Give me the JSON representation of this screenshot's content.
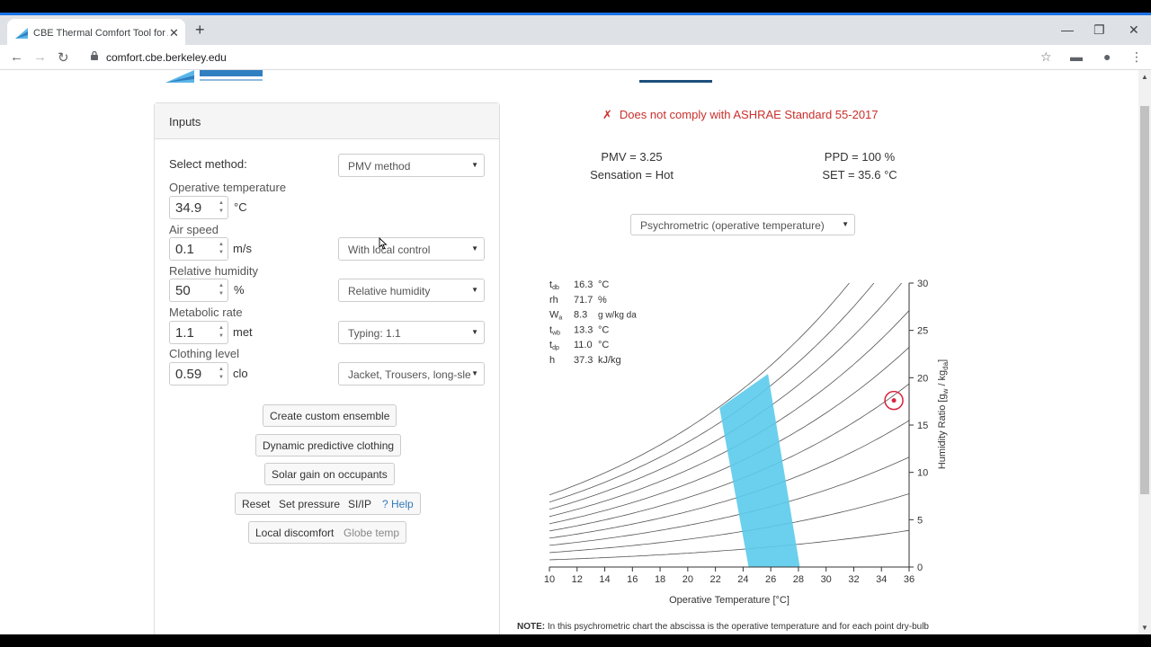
{
  "browser": {
    "tab_title": "CBE Thermal Comfort Tool for AS",
    "url": "comfort.cbe.berkeley.edu"
  },
  "inputs": {
    "header": "Inputs",
    "select_method_label": "Select method:",
    "method_value": "PMV method",
    "operative_temperature": {
      "label": "Operative temperature",
      "value": "34.9",
      "unit": "°C"
    },
    "air_speed": {
      "label": "Air speed",
      "value": "0.1",
      "unit": "m/s",
      "option": "With local control"
    },
    "relative_humidity": {
      "label": "Relative humidity",
      "value": "50",
      "unit": "%",
      "option": "Relative humidity"
    },
    "metabolic_rate": {
      "label": "Metabolic rate",
      "value": "1.1",
      "unit": "met",
      "option": "Typing: 1.1"
    },
    "clothing_level": {
      "label": "Clothing level",
      "value": "0.59",
      "unit": "clo",
      "option": "Jacket, Trousers, long-sle"
    },
    "buttons": {
      "custom_ensemble": "Create custom ensemble",
      "dynamic_clothing": "Dynamic predictive clothing",
      "solar_gain": "Solar gain on occupants",
      "reset": "Reset",
      "set_pressure": "Set pressure",
      "si_ip": "SI/IP",
      "help": "? Help",
      "local_discomfort": "Local discomfort",
      "globe_temp": "Globe temp"
    }
  },
  "results": {
    "compliance_icon": "✗",
    "compliance": "Does not comply with ASHRAE Standard 55-2017",
    "pmv": "PMV = 3.25",
    "sensation": "Sensation = Hot",
    "ppd": "PPD = 100 %",
    "set": "SET = 35.6 °C",
    "chart_select": "Psychrometric (operative temperature)"
  },
  "chart_data": {
    "type": "line",
    "xlabel": "Operative Temperature [°C]",
    "ylabel": "Humidity Ratio [g",
    "ylabel_sub": "w",
    "ylabel_mid": " / kg",
    "ylabel_sub2": "da",
    "ylabel_end": "]",
    "xlim": [
      10,
      36
    ],
    "ylim": [
      0,
      30
    ],
    "x_ticks": [
      "10",
      "12",
      "14",
      "16",
      "18",
      "20",
      "22",
      "24",
      "26",
      "28",
      "30",
      "32",
      "34",
      "36"
    ],
    "y_ticks": [
      "0",
      "5",
      "10",
      "15",
      "20",
      "25",
      "30"
    ],
    "rh_curves": [
      0.1,
      0.2,
      0.3,
      0.4,
      0.5,
      0.6,
      0.7,
      0.8,
      0.9,
      1.0
    ],
    "comfort_zone": [
      [
        22.3,
        16.8
      ],
      [
        24.4,
        0
      ],
      [
        28.1,
        0
      ],
      [
        25.8,
        20.4
      ]
    ],
    "current_point": {
      "x": 34.9,
      "y": 17.6
    },
    "readout": [
      {
        "sym": "t",
        "sub": "db",
        "val": "16.3",
        "unit": "°C"
      },
      {
        "sym": "rh",
        "sub": "",
        "val": "71.7",
        "unit": "%"
      },
      {
        "sym": "W",
        "sub": "a",
        "val": "8.3",
        "unit": "g w/kg da"
      },
      {
        "sym": "t",
        "sub": "wb",
        "val": "13.3",
        "unit": "°C"
      },
      {
        "sym": "t",
        "sub": "dp",
        "val": "11.0",
        "unit": "°C"
      },
      {
        "sym": "h",
        "sub": "",
        "val": "37.3",
        "unit": "kJ/kg"
      }
    ],
    "zone_color": "#5bcbeb",
    "point_color": "#d7263d"
  },
  "note": {
    "label": "NOTE:",
    "text": " In this psychrometric chart the abscissa is the operative temperature and for each point dry-bulb"
  }
}
